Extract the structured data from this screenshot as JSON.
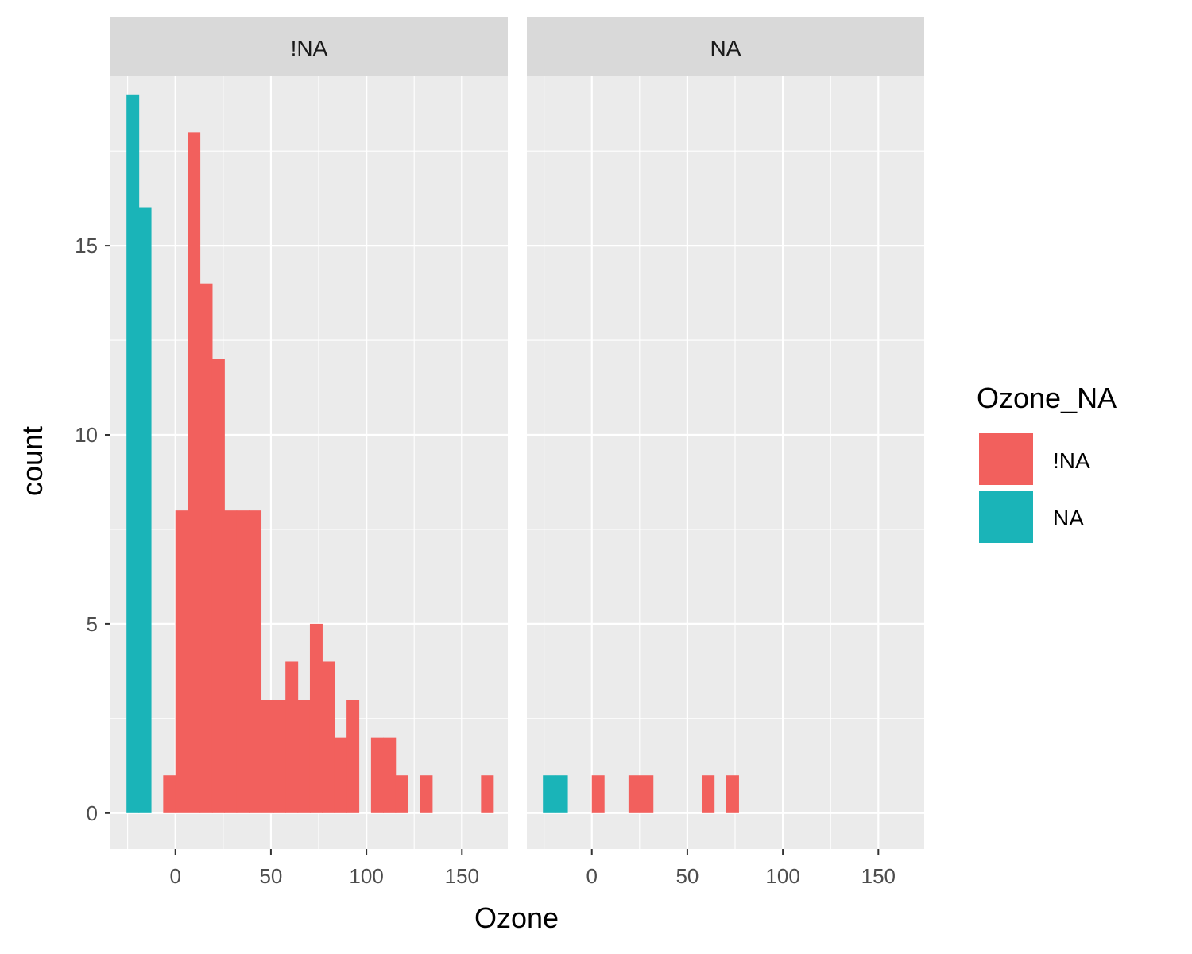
{
  "chart_data": {
    "type": "bar",
    "title": "",
    "xlabel": "Ozone",
    "ylabel": "count",
    "xlim": [
      -34,
      174
    ],
    "ylim": [
      -0.95,
      19.5
    ],
    "x_ticks": [
      0,
      50,
      100,
      150
    ],
    "y_ticks": [
      0,
      5,
      10,
      15
    ],
    "bin_width": 6.4,
    "grid": true,
    "legend": {
      "title": "Ozone_NA",
      "position": "right",
      "entries": [
        {
          "label": "!NA",
          "color": "#F8766D"
        },
        {
          "label": "NA",
          "color": "#00BFC4"
        }
      ]
    },
    "panels": [
      {
        "strip": "!NA",
        "series": [
          {
            "name": "NA",
            "color": "#1AB4B8",
            "bins": [
              {
                "x": -22.4,
                "count": 19
              },
              {
                "x": -16,
                "count": 16
              }
            ]
          },
          {
            "name": "!NA",
            "color": "#F2605D",
            "bins": [
              {
                "x": -3.2,
                "count": 1
              },
              {
                "x": 3.2,
                "count": 8
              },
              {
                "x": 9.6,
                "count": 18
              },
              {
                "x": 16,
                "count": 14
              },
              {
                "x": 22.4,
                "count": 12
              },
              {
                "x": 28.8,
                "count": 8
              },
              {
                "x": 35.2,
                "count": 8
              },
              {
                "x": 41.6,
                "count": 8
              },
              {
                "x": 48,
                "count": 3
              },
              {
                "x": 54.4,
                "count": 3
              },
              {
                "x": 60.8,
                "count": 4
              },
              {
                "x": 67.2,
                "count": 3
              },
              {
                "x": 73.6,
                "count": 5
              },
              {
                "x": 80,
                "count": 4
              },
              {
                "x": 86.4,
                "count": 2
              },
              {
                "x": 92.8,
                "count": 3
              },
              {
                "x": 99.2,
                "count": 0
              },
              {
                "x": 105.6,
                "count": 2
              },
              {
                "x": 112,
                "count": 2
              },
              {
                "x": 118.4,
                "count": 1
              },
              {
                "x": 124.8,
                "count": 0
              },
              {
                "x": 131.2,
                "count": 1
              },
              {
                "x": 137.6,
                "count": 0
              },
              {
                "x": 144,
                "count": 0
              },
              {
                "x": 150.4,
                "count": 0
              },
              {
                "x": 156.8,
                "count": 0
              },
              {
                "x": 163.2,
                "count": 1
              }
            ]
          }
        ]
      },
      {
        "strip": "NA",
        "series": [
          {
            "name": "NA",
            "color": "#1AB4B8",
            "bins": [
              {
                "x": -22.4,
                "count": 1
              },
              {
                "x": -16,
                "count": 1
              }
            ]
          },
          {
            "name": "!NA",
            "color": "#F2605D",
            "bins": [
              {
                "x": 3.2,
                "count": 1
              },
              {
                "x": 22.4,
                "count": 1
              },
              {
                "x": 28.8,
                "count": 1
              },
              {
                "x": 60.8,
                "count": 1
              },
              {
                "x": 73.6,
                "count": 1
              }
            ]
          }
        ]
      }
    ]
  }
}
